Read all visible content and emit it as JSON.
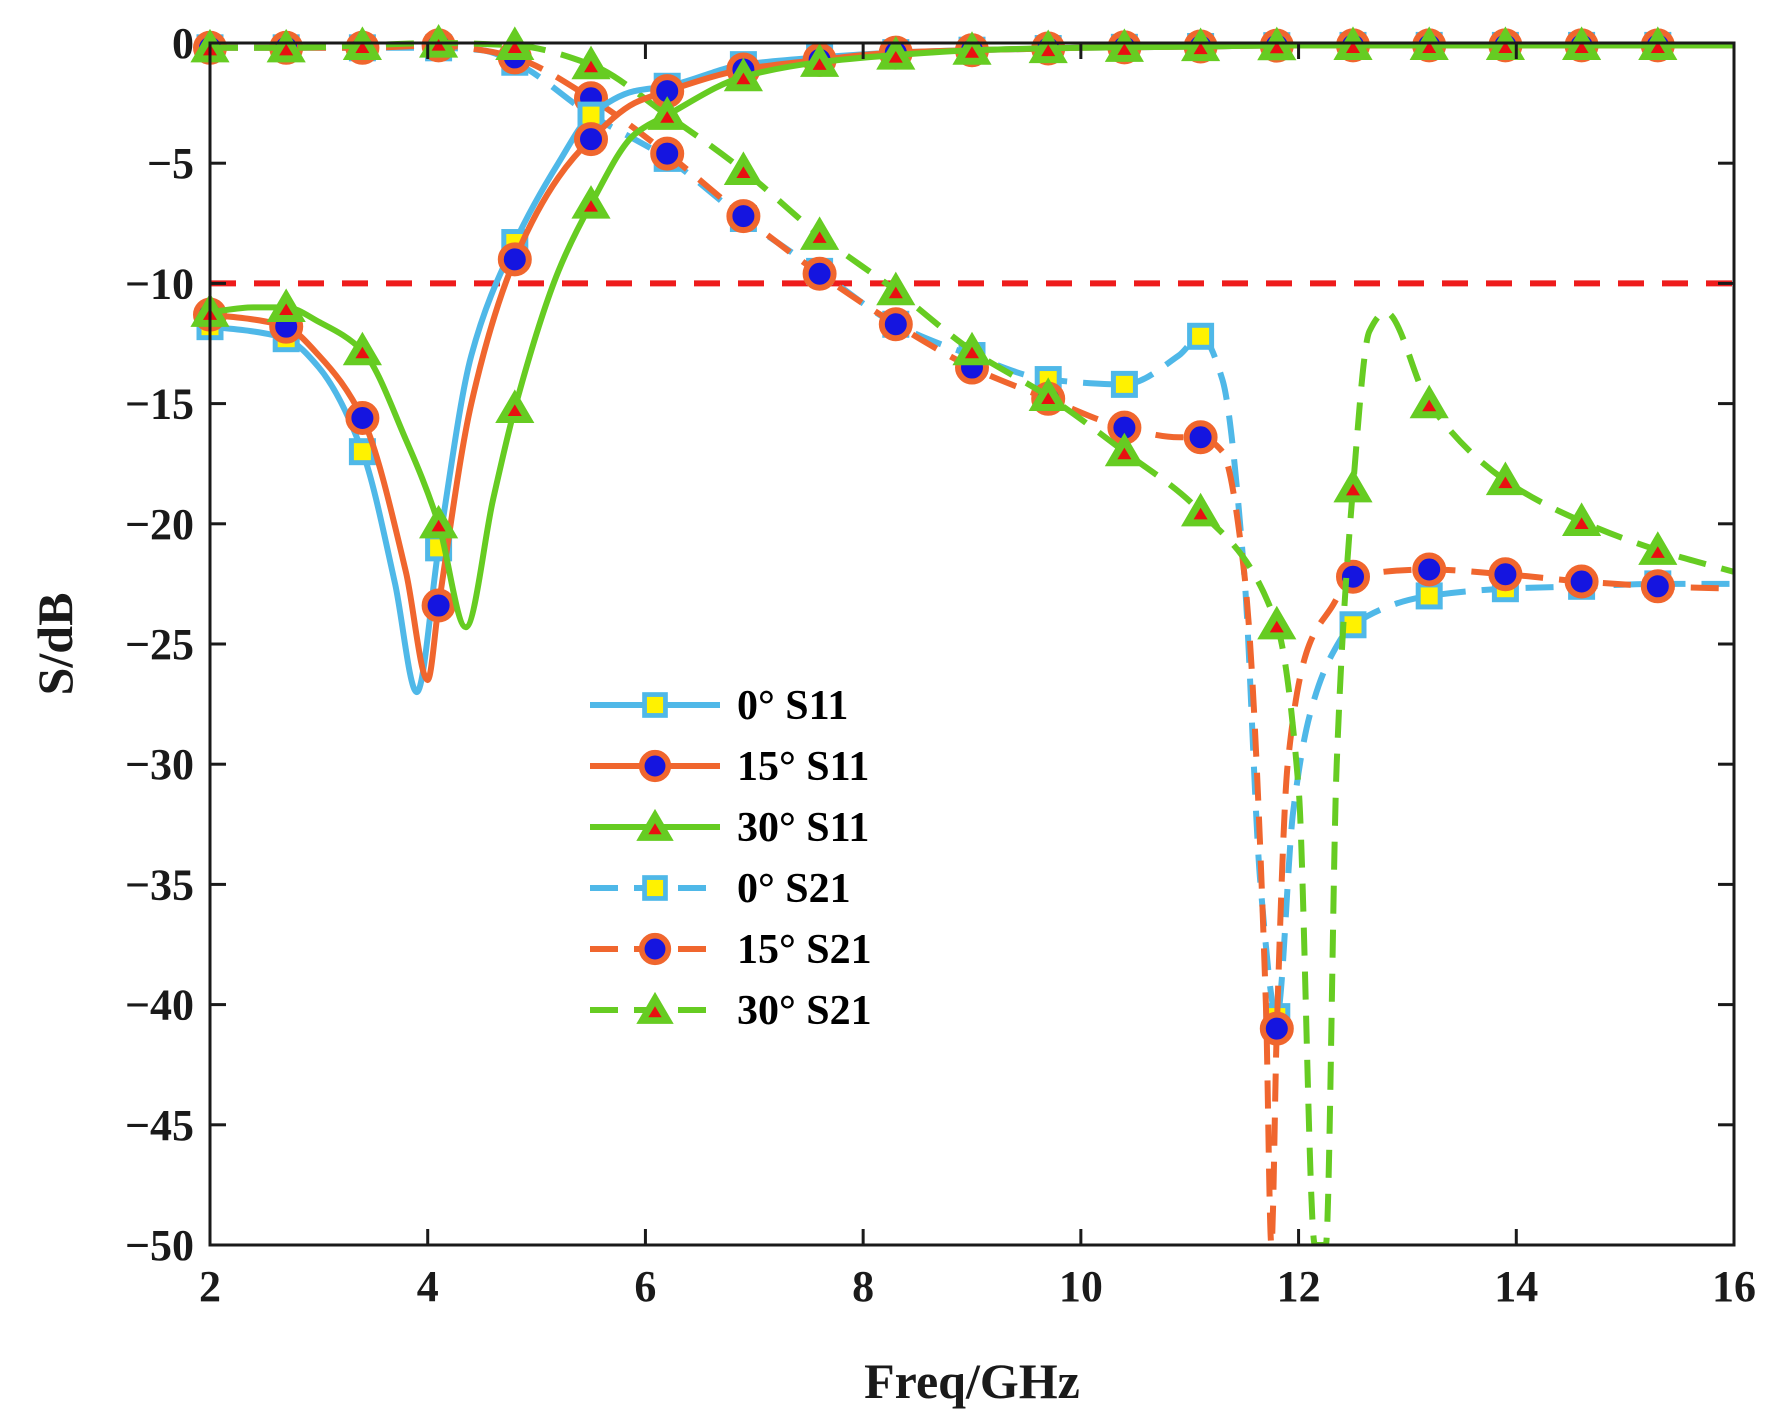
{
  "chart_data": {
    "type": "line",
    "title": "",
    "xlabel": "Freq/GHz",
    "ylabel": "S/dB",
    "xlim": [
      2,
      16
    ],
    "ylim": [
      -50,
      0
    ],
    "xticks": [
      2,
      4,
      6,
      8,
      10,
      12,
      14,
      16
    ],
    "yticks": [
      0,
      -5,
      -10,
      -15,
      -20,
      -25,
      -30,
      -35,
      -40,
      -45,
      -50
    ],
    "grid": false,
    "legend_position": "center-left",
    "reference_line": {
      "y": -10,
      "color": "#ee1c1c",
      "style": "dashed"
    },
    "series": [
      {
        "name": "0° S11",
        "color": "#4fb8e8",
        "marker": "square",
        "dash": "solid",
        "x": [
          2,
          2.4,
          2.7,
          3.0,
          3.4,
          3.7,
          3.9,
          4.1,
          4.4,
          4.8,
          5.2,
          5.5,
          5.9,
          6.2,
          6.9,
          7.6,
          8.3,
          9,
          10,
          11,
          12,
          13,
          14,
          15,
          16
        ],
        "y": [
          -11.8,
          -12.0,
          -12.3,
          -13.5,
          -17.0,
          -22.5,
          -27.0,
          -21.0,
          -13.0,
          -8.3,
          -5.0,
          -3.0,
          -2.0,
          -1.8,
          -0.9,
          -0.6,
          -0.4,
          -0.3,
          -0.2,
          -0.15,
          -0.1,
          -0.1,
          -0.1,
          -0.1,
          -0.1
        ]
      },
      {
        "name": "15° S11",
        "color": "#f0662e",
        "marker": "circle",
        "dash": "solid",
        "x": [
          2,
          2.4,
          2.7,
          3.0,
          3.4,
          3.8,
          4.0,
          4.1,
          4.4,
          4.8,
          5.2,
          5.5,
          5.9,
          6.2,
          6.9,
          7.6,
          8.3,
          9,
          10,
          11,
          12,
          13,
          14,
          15,
          16
        ],
        "y": [
          -11.3,
          -11.5,
          -11.8,
          -13.0,
          -15.6,
          -22.0,
          -26.5,
          -23.4,
          -15.0,
          -9.0,
          -5.6,
          -4.0,
          -2.5,
          -2.0,
          -1.1,
          -0.7,
          -0.4,
          -0.3,
          -0.2,
          -0.15,
          -0.1,
          -0.1,
          -0.1,
          -0.1,
          -0.1
        ]
      },
      {
        "name": "30° S11",
        "color": "#66cc22",
        "marker": "triangle",
        "dash": "solid",
        "x": [
          2,
          2.4,
          2.7,
          3.0,
          3.4,
          3.8,
          4.1,
          4.35,
          4.6,
          4.8,
          5.2,
          5.5,
          5.9,
          6.2,
          6.9,
          7.6,
          8.3,
          9,
          10,
          11,
          12,
          13,
          14,
          15,
          16
        ],
        "y": [
          -11.2,
          -11.0,
          -11.0,
          -11.6,
          -12.8,
          -16.5,
          -20.0,
          -24.3,
          -19.0,
          -15.2,
          -9.5,
          -6.7,
          -3.8,
          -3.0,
          -1.4,
          -0.8,
          -0.5,
          -0.3,
          -0.2,
          -0.15,
          -0.1,
          -0.1,
          -0.1,
          -0.1,
          -0.1
        ]
      },
      {
        "name": "0° S21",
        "color": "#4fb8e8",
        "marker": "square",
        "dash": "dashed",
        "x": [
          2,
          3.4,
          4.1,
          4.5,
          4.8,
          5.5,
          6.2,
          6.9,
          7.6,
          8.3,
          9.0,
          9.7,
          10.4,
          10.9,
          11.1,
          11.3,
          11.5,
          11.65,
          11.8,
          11.95,
          12.1,
          12.3,
          12.5,
          13.2,
          13.9,
          14.6,
          15.3,
          16
        ],
        "y": [
          -0.2,
          -0.2,
          -0.2,
          -0.3,
          -0.8,
          -3.0,
          -4.8,
          -7.3,
          -9.5,
          -11.7,
          -13.0,
          -14.0,
          -14.2,
          -13.0,
          -12.2,
          -14.0,
          -22.0,
          -35.0,
          -40.5,
          -32.0,
          -28.0,
          -25.5,
          -24.2,
          -23.0,
          -22.7,
          -22.6,
          -22.5,
          -22.5
        ]
      },
      {
        "name": "15° S21",
        "color": "#f0662e",
        "marker": "circle",
        "dash": "dashed",
        "x": [
          2,
          3.4,
          4.1,
          4.5,
          4.8,
          5.5,
          6.2,
          6.9,
          7.6,
          8.3,
          9.0,
          9.7,
          10.4,
          10.9,
          11.1,
          11.3,
          11.5,
          11.7,
          11.75,
          11.8,
          11.9,
          12.1,
          12.3,
          12.5,
          13.2,
          13.9,
          14.6,
          15.3,
          16
        ],
        "y": [
          -0.2,
          -0.2,
          -0.1,
          -0.3,
          -0.6,
          -2.3,
          -4.6,
          -7.2,
          -9.6,
          -11.7,
          -13.5,
          -14.8,
          -16.0,
          -16.4,
          -16.4,
          -17.0,
          -22.0,
          -40.0,
          -50.0,
          -41.0,
          -30.0,
          -25.0,
          -23.5,
          -22.2,
          -21.9,
          -22.1,
          -22.4,
          -22.6,
          -22.7
        ]
      },
      {
        "name": "30° S21",
        "color": "#66cc22",
        "marker": "triangle",
        "dash": "dashed",
        "x": [
          2,
          2.7,
          3.4,
          4.1,
          4.8,
          5.5,
          6.2,
          6.9,
          7.6,
          8.3,
          9.0,
          9.7,
          10.4,
          11.1,
          11.8,
          12.0,
          12.15,
          12.25,
          12.35,
          12.5,
          12.65,
          12.8,
          13.2,
          13.9,
          14.6,
          15.3,
          16
        ],
        "y": [
          -0.2,
          -0.2,
          -0.1,
          0.0,
          -0.1,
          -0.9,
          -3.0,
          -5.3,
          -8.0,
          -10.3,
          -12.8,
          -14.7,
          -17.0,
          -19.5,
          -24.2,
          -31.0,
          -50.0,
          -50.0,
          -30.0,
          -18.5,
          -12.0,
          -11.2,
          -15.0,
          -18.2,
          -19.9,
          -21.1,
          -22.0
        ]
      }
    ]
  }
}
